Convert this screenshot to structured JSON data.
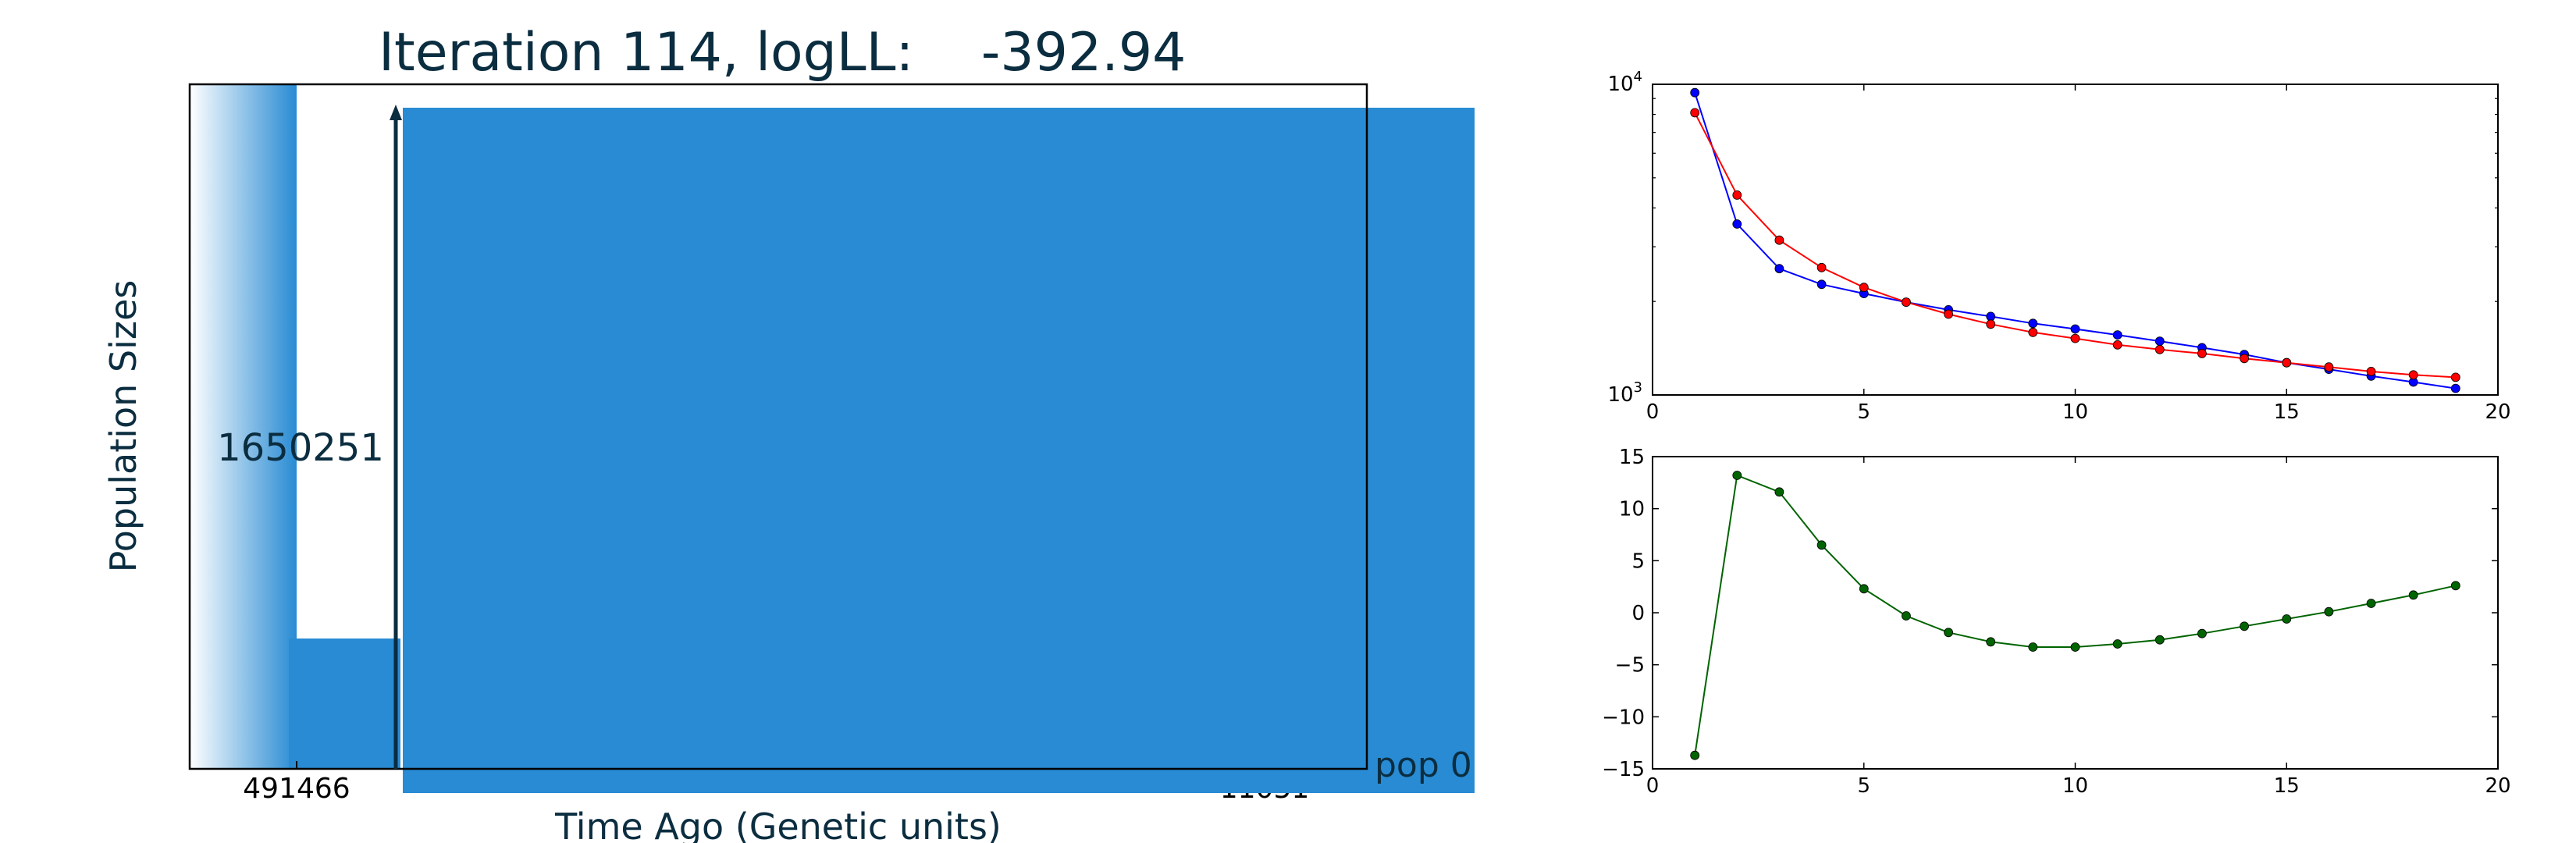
{
  "colors": {
    "navy": "#0b2d40",
    "pop_fill": "#288bd3",
    "axis": "#000000",
    "series_blue": "#0000ff",
    "series_red": "#ff0000",
    "series_green": "#006400"
  },
  "chart_data": [
    {
      "type": "area",
      "title": "Iteration 114, logLL:    -392.94",
      "xlabel": "Time Ago (Genetic units)",
      "ylabel": "Population Sizes",
      "annotations": {
        "size_value": "1650251",
        "time_tick": "491466",
        "pop_label": "pop 0",
        "occluded_tick": "11051"
      },
      "grid": false
    },
    {
      "type": "line",
      "title": "",
      "xlabel": "",
      "ylabel": "",
      "xlim": [
        0,
        20
      ],
      "ylim": [
        1000,
        10000
      ],
      "yscale": "log",
      "xticks": [
        "0",
        "5",
        "10",
        "15",
        "20"
      ],
      "yticks": [
        {
          "base": "10",
          "exp": "3",
          "value": 1000
        },
        {
          "base": "10",
          "exp": "4",
          "value": 10000
        }
      ],
      "grid": false,
      "x": [
        1,
        2,
        3,
        4,
        5,
        6,
        7,
        8,
        9,
        10,
        11,
        12,
        13,
        14,
        15,
        16,
        17,
        18,
        19
      ],
      "series": [
        {
          "color": "#0000ff",
          "values": [
            9400,
            3550,
            2550,
            2270,
            2120,
            1990,
            1880,
            1790,
            1700,
            1630,
            1560,
            1490,
            1420,
            1350,
            1270,
            1210,
            1150,
            1100,
            1050
          ]
        },
        {
          "color": "#ff0000",
          "values": [
            8100,
            4400,
            3150,
            2570,
            2220,
            1990,
            1820,
            1690,
            1590,
            1520,
            1450,
            1400,
            1360,
            1310,
            1270,
            1230,
            1190,
            1160,
            1140
          ]
        }
      ]
    },
    {
      "type": "line",
      "title": "",
      "xlabel": "",
      "ylabel": "",
      "xlim": [
        0,
        20
      ],
      "ylim": [
        -15,
        15
      ],
      "xticks": [
        "0",
        "5",
        "10",
        "15",
        "20"
      ],
      "yticks": [
        "15",
        "10",
        "5",
        "0",
        "−5",
        "−10",
        "−15"
      ],
      "grid": false,
      "x": [
        1,
        2,
        3,
        4,
        5,
        6,
        7,
        8,
        9,
        10,
        11,
        12,
        13,
        14,
        15,
        16,
        17,
        18,
        19
      ],
      "series": [
        {
          "color": "#006400",
          "values": [
            -13.7,
            13.2,
            11.6,
            6.5,
            2.3,
            -0.3,
            -1.9,
            -2.8,
            -3.3,
            -3.3,
            -3.0,
            -2.6,
            -2.0,
            -1.3,
            -0.6,
            0.1,
            0.9,
            1.7,
            2.6
          ]
        }
      ]
    }
  ]
}
